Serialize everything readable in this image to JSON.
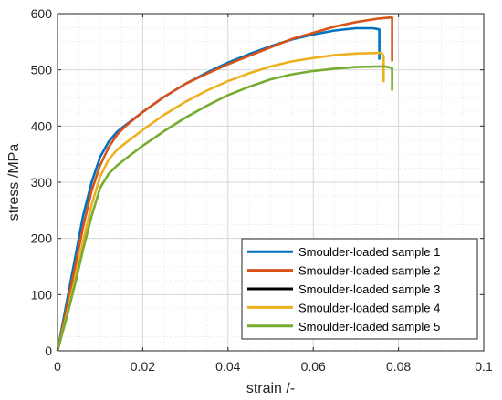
{
  "chart_data": {
    "type": "line",
    "xlabel": "strain /-",
    "ylabel": "stress /MPa",
    "xlim": [
      0,
      0.1
    ],
    "ylim": [
      0,
      600
    ],
    "x_ticks": [
      0,
      0.02,
      0.04,
      0.06,
      0.08,
      0.1
    ],
    "x_tick_labels": [
      "0",
      "0.02",
      "0.04",
      "0.06",
      "0.08",
      "0.1"
    ],
    "y_ticks": [
      0,
      100,
      200,
      300,
      400,
      500,
      600
    ],
    "y_tick_labels": [
      "0",
      "100",
      "200",
      "300",
      "400",
      "500",
      "600"
    ],
    "grid": true,
    "minor_grid": true,
    "legend_position": "bottom-right",
    "series": [
      {
        "name": "Smoulder-loaded sample 1",
        "color": "#0072BD",
        "x": [
          0,
          0.002,
          0.004,
          0.006,
          0.008,
          0.01,
          0.012,
          0.014,
          0.016,
          0.02,
          0.025,
          0.03,
          0.035,
          0.04,
          0.045,
          0.05,
          0.055,
          0.06,
          0.065,
          0.07,
          0.074,
          0.0755,
          0.0755
        ],
        "y": [
          0,
          80,
          160,
          240,
          300,
          345,
          372,
          390,
          402,
          425,
          452,
          475,
          495,
          513,
          528,
          542,
          554,
          563,
          570,
          574,
          574,
          572,
          518
        ]
      },
      {
        "name": "Smoulder-loaded sample 2",
        "color": "#D95319",
        "x": [
          0,
          0.002,
          0.004,
          0.006,
          0.008,
          0.01,
          0.012,
          0.014,
          0.016,
          0.02,
          0.025,
          0.03,
          0.035,
          0.04,
          0.045,
          0.05,
          0.055,
          0.06,
          0.065,
          0.07,
          0.075,
          0.078,
          0.0785,
          0.0785
        ],
        "y": [
          0,
          70,
          145,
          220,
          285,
          330,
          362,
          385,
          400,
          425,
          452,
          475,
          493,
          510,
          525,
          540,
          555,
          566,
          577,
          585,
          591,
          593,
          593,
          515
        ]
      },
      {
        "name": "Smoulder-loaded sample 3",
        "color": "#000000",
        "x": [
          0,
          0.002,
          0.004
        ],
        "y": [
          0,
          60,
          125
        ]
      },
      {
        "name": "Smoulder-loaded sample 4",
        "color": "#EDB120",
        "x": [
          0,
          0.002,
          0.004,
          0.006,
          0.008,
          0.01,
          0.012,
          0.014,
          0.016,
          0.02,
          0.025,
          0.03,
          0.035,
          0.04,
          0.045,
          0.05,
          0.055,
          0.06,
          0.065,
          0.07,
          0.075,
          0.076,
          0.0765,
          0.0765
        ],
        "y": [
          0,
          60,
          125,
          195,
          260,
          310,
          340,
          358,
          370,
          393,
          420,
          443,
          463,
          480,
          494,
          506,
          515,
          521,
          526,
          529,
          530,
          530,
          525,
          478
        ]
      },
      {
        "name": "Smoulder-loaded sample 5",
        "color": "#77AC30",
        "x": [
          0,
          0.002,
          0.004,
          0.006,
          0.008,
          0.01,
          0.012,
          0.014,
          0.016,
          0.02,
          0.025,
          0.03,
          0.035,
          0.04,
          0.045,
          0.05,
          0.055,
          0.06,
          0.065,
          0.07,
          0.075,
          0.077,
          0.0785,
          0.0785
        ],
        "y": [
          0,
          55,
          115,
          180,
          240,
          290,
          315,
          330,
          342,
          365,
          391,
          415,
          436,
          455,
          470,
          483,
          492,
          498,
          502,
          505,
          506,
          506,
          503,
          463
        ]
      }
    ]
  }
}
